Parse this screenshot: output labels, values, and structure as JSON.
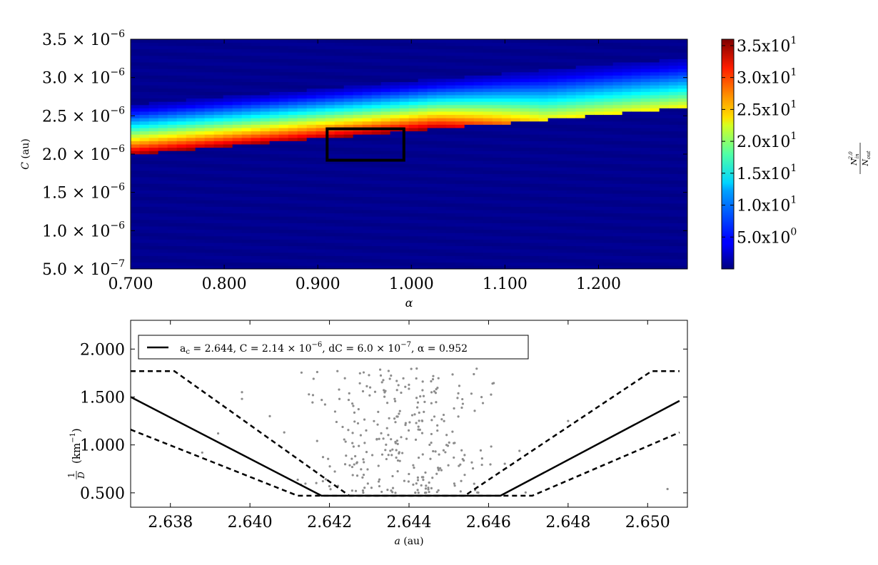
{
  "chart_data": [
    {
      "type": "heatmap",
      "title": "",
      "xlabel": "α",
      "ylabel": "C (au)",
      "xlim": [
        0.7,
        1.295
      ],
      "ylim": [
        5e-07,
        3.5e-06
      ],
      "x_ticks": [
        {
          "v": 0.7,
          "label": "0.700"
        },
        {
          "v": 0.8,
          "label": "0.800"
        },
        {
          "v": 0.9,
          "label": "0.900"
        },
        {
          "v": 1.0,
          "label": "1.000"
        },
        {
          "v": 1.1,
          "label": "1.100"
        },
        {
          "v": 1.2,
          "label": "1.200"
        }
      ],
      "y_ticks": [
        {
          "v": 3.5e-06,
          "mant": "3.5",
          "exp": "−6"
        },
        {
          "v": 3e-06,
          "mant": "3.0",
          "exp": "−6"
        },
        {
          "v": 2.5e-06,
          "mant": "2.5",
          "exp": "−6"
        },
        {
          "v": 2e-06,
          "mant": "2.0",
          "exp": "−6"
        },
        {
          "v": 1.5e-06,
          "mant": "1.5",
          "exp": "−6"
        },
        {
          "v": 1e-06,
          "mant": "1.0",
          "exp": "−6"
        },
        {
          "v": 5e-07,
          "mant": "5.0",
          "exp": "−7"
        }
      ],
      "colorbar": {
        "label": "N_in^2.0 / N_out",
        "label_num": "N",
        "label_num_sub": "in",
        "label_num_sup": "2.0",
        "label_den": "N",
        "label_den_sub": "out",
        "range": [
          0,
          36
        ],
        "ticks": [
          {
            "v": 35,
            "label": "3.5x10",
            "exp": "1"
          },
          {
            "v": 30,
            "label": "3.0x10",
            "exp": "1"
          },
          {
            "v": 25,
            "label": "2.5x10",
            "exp": "1"
          },
          {
            "v": 20,
            "label": "2.0x10",
            "exp": "1"
          },
          {
            "v": 15,
            "label": "1.5x10",
            "exp": "1"
          },
          {
            "v": 10,
            "label": "1.0x10",
            "exp": "1"
          },
          {
            "v": 5,
            "label": "5.0x10",
            "exp": "0"
          }
        ]
      },
      "band": {
        "lower_edge_start": 2e-06,
        "lower_edge_end": 2.6e-06,
        "width": 6.5e-07,
        "peak_value": 33,
        "background_value": 0.5
      },
      "highlight_box": {
        "x": [
          0.91,
          0.992
        ],
        "y": [
          1.92e-06,
          2.33e-06
        ]
      }
    },
    {
      "type": "scatter",
      "xlabel": "a (au)",
      "ylabel": "1/D (km⁻¹)",
      "ylabel_unit": "(km",
      "ylabel_exp": "−1",
      "ylabel_close": ")",
      "xlim": [
        2.637,
        2.651
      ],
      "ylim": [
        0.35,
        2.3
      ],
      "x_ticks": [
        "2.638",
        "2.640",
        "2.642",
        "2.644",
        "2.646",
        "2.648",
        "2.650"
      ],
      "x_tick_values": [
        2.638,
        2.64,
        2.642,
        2.644,
        2.646,
        2.648,
        2.65
      ],
      "y_ticks": [
        "2.000",
        "1.500",
        "1.000",
        "0.500"
      ],
      "y_tick_values": [
        2.0,
        1.5,
        1.0,
        0.5
      ],
      "legend": {
        "text": "a_c = 2.644,  C = 2.14 × 10^−6,  dC = 6.0 × 10^−7,  α = 0.952",
        "pos": "top-left",
        "parts": {
          "ac": "a",
          "ac_sub": "c",
          "ac_val": " = 2.644,  C = 2.14 × 10",
          "c_exp": "−6",
          "dc": ",  dC = 6.0 × 10",
          "dc_exp": "−7",
          "alpha": ",  α = 0.952"
        }
      },
      "series": [
        {
          "name": "center (solid)",
          "x": [
            2.637,
            2.6418,
            2.6463,
            2.6508
          ],
          "y": [
            1.5,
            0.47,
            0.47,
            1.46
          ]
        },
        {
          "name": "outer (dashed)",
          "x": [
            2.637,
            2.6381,
            2.6425,
            2.6454,
            2.6501,
            2.6508
          ],
          "y": [
            1.77,
            1.77,
            0.47,
            0.47,
            1.77,
            1.77
          ]
        },
        {
          "name": "inner (dashed)",
          "x": [
            2.637,
            2.6412,
            2.6471,
            2.6508
          ],
          "y": [
            1.16,
            0.47,
            0.47,
            1.13
          ]
        }
      ],
      "points": {
        "count": 300,
        "x_range": [
          2.6405,
          2.6472
        ],
        "y_range": [
          0.5,
          1.8
        ],
        "outliers": [
          {
            "x": 2.6505,
            "y": 0.54
          },
          {
            "x": 2.648,
            "y": 1.25
          },
          {
            "x": 2.6398,
            "y": 1.55
          },
          {
            "x": 2.6398,
            "y": 1.48
          },
          {
            "x": 2.6392,
            "y": 1.12
          },
          {
            "x": 2.6388,
            "y": 0.92
          },
          {
            "x": 2.6422,
            "y": 1.77
          },
          {
            "x": 2.6416,
            "y": 1.69
          },
          {
            "x": 2.6405,
            "y": 1.3
          },
          {
            "x": 2.6461,
            "y": 1.64
          }
        ]
      }
    }
  ]
}
